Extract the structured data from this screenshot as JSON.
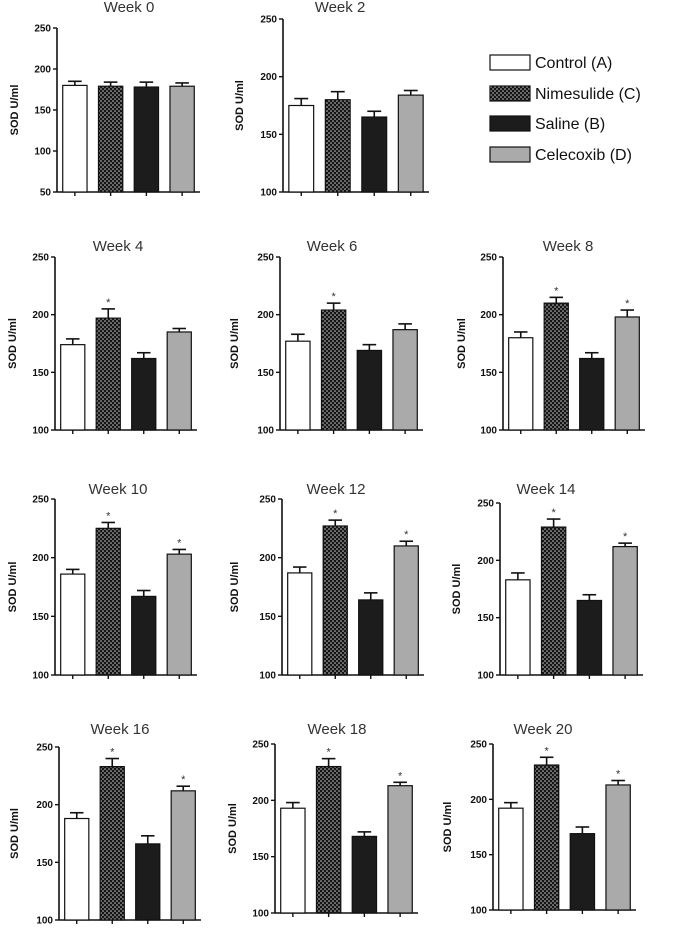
{
  "legend": {
    "items": [
      {
        "label": "Control (A)",
        "style": "control"
      },
      {
        "label": "Nimesulide (C)",
        "style": "nimesulide"
      },
      {
        "label": "Saline (B)",
        "style": "saline"
      },
      {
        "label": "Celecoxib (D)",
        "style": "celecoxib"
      }
    ]
  },
  "colors": {
    "control": "#ffffff",
    "nimesulide": "#1a1a1a",
    "saline": "#1c1c1c",
    "celecoxib": "#aaaaaa",
    "axis": "#111111"
  },
  "chart_data": [
    {
      "type": "bar",
      "title": "Week 0",
      "ylabel": "SOD U/ml",
      "ylim": [
        50,
        250
      ],
      "yticks": [
        50,
        100,
        150,
        200,
        250
      ],
      "series": [
        {
          "name": "Control (A)",
          "values": [
            180
          ]
        },
        {
          "name": "Nimesulide (C)",
          "values": [
            179
          ]
        },
        {
          "name": "Saline (B)",
          "values": [
            178
          ]
        },
        {
          "name": "Celecoxib (D)",
          "values": [
            179
          ]
        }
      ],
      "errors": [
        5,
        5,
        6,
        4
      ],
      "significant": [
        false,
        false,
        false,
        false
      ]
    },
    {
      "type": "bar",
      "title": "Week 2",
      "ylabel": "SOD U/ml",
      "ylim": [
        100,
        250
      ],
      "yticks": [
        100,
        150,
        200,
        250
      ],
      "series": [
        {
          "name": "Control (A)",
          "values": [
            175
          ]
        },
        {
          "name": "Nimesulide (C)",
          "values": [
            180
          ]
        },
        {
          "name": "Saline (B)",
          "values": [
            165
          ]
        },
        {
          "name": "Celecoxib (D)",
          "values": [
            184
          ]
        }
      ],
      "errors": [
        6,
        7,
        5,
        4
      ],
      "significant": [
        false,
        false,
        false,
        false
      ]
    },
    {
      "type": "bar",
      "title": "Week 4",
      "ylabel": "SOD U/ml",
      "ylim": [
        100,
        250
      ],
      "yticks": [
        100,
        150,
        200,
        250
      ],
      "series": [
        {
          "name": "Control (A)",
          "values": [
            174
          ]
        },
        {
          "name": "Nimesulide (C)",
          "values": [
            197
          ]
        },
        {
          "name": "Saline (B)",
          "values": [
            162
          ]
        },
        {
          "name": "Celecoxib (D)",
          "values": [
            185
          ]
        }
      ],
      "errors": [
        5,
        8,
        5,
        3
      ],
      "significant": [
        false,
        true,
        false,
        false
      ]
    },
    {
      "type": "bar",
      "title": "Week 6",
      "ylabel": "SOD U/ml",
      "ylim": [
        100,
        250
      ],
      "yticks": [
        100,
        150,
        200,
        250
      ],
      "series": [
        {
          "name": "Control (A)",
          "values": [
            177
          ]
        },
        {
          "name": "Nimesulide (C)",
          "values": [
            204
          ]
        },
        {
          "name": "Saline (B)",
          "values": [
            169
          ]
        },
        {
          "name": "Celecoxib (D)",
          "values": [
            187
          ]
        }
      ],
      "errors": [
        6,
        6,
        5,
        5
      ],
      "significant": [
        false,
        true,
        false,
        false
      ]
    },
    {
      "type": "bar",
      "title": "Week 8",
      "ylabel": "SOD U/ml",
      "ylim": [
        100,
        250
      ],
      "yticks": [
        100,
        150,
        200,
        250
      ],
      "series": [
        {
          "name": "Control (A)",
          "values": [
            180
          ]
        },
        {
          "name": "Nimesulide (C)",
          "values": [
            210
          ]
        },
        {
          "name": "Saline (B)",
          "values": [
            162
          ]
        },
        {
          "name": "Celecoxib (D)",
          "values": [
            198
          ]
        }
      ],
      "errors": [
        5,
        5,
        5,
        6
      ],
      "significant": [
        false,
        true,
        false,
        true
      ]
    },
    {
      "type": "bar",
      "title": "Week 10",
      "ylabel": "SOD U/ml",
      "ylim": [
        100,
        250
      ],
      "yticks": [
        100,
        150,
        200,
        250
      ],
      "series": [
        {
          "name": "Control (A)",
          "values": [
            186
          ]
        },
        {
          "name": "Nimesulide (C)",
          "values": [
            225
          ]
        },
        {
          "name": "Saline (B)",
          "values": [
            167
          ]
        },
        {
          "name": "Celecoxib (D)",
          "values": [
            203
          ]
        }
      ],
      "errors": [
        4,
        5,
        5,
        4
      ],
      "significant": [
        false,
        true,
        false,
        true
      ]
    },
    {
      "type": "bar",
      "title": "Week 12",
      "ylabel": "SOD U/ml",
      "ylim": [
        100,
        250
      ],
      "yticks": [
        100,
        150,
        200,
        250
      ],
      "series": [
        {
          "name": "Control (A)",
          "values": [
            187
          ]
        },
        {
          "name": "Nimesulide (C)",
          "values": [
            227
          ]
        },
        {
          "name": "Saline (B)",
          "values": [
            164
          ]
        },
        {
          "name": "Celecoxib (D)",
          "values": [
            210
          ]
        }
      ],
      "errors": [
        5,
        5,
        6,
        4
      ],
      "significant": [
        false,
        true,
        false,
        true
      ]
    },
    {
      "type": "bar",
      "title": "Week 14",
      "ylabel": "SOD U/ml",
      "ylim": [
        100,
        250
      ],
      "yticks": [
        100,
        150,
        200,
        250
      ],
      "series": [
        {
          "name": "Control (A)",
          "values": [
            183
          ]
        },
        {
          "name": "Nimesulide (C)",
          "values": [
            229
          ]
        },
        {
          "name": "Saline (B)",
          "values": [
            165
          ]
        },
        {
          "name": "Celecoxib (D)",
          "values": [
            212
          ]
        }
      ],
      "errors": [
        6,
        7,
        5,
        3
      ],
      "significant": [
        false,
        true,
        false,
        true
      ]
    },
    {
      "type": "bar",
      "title": "Week 16",
      "ylabel": "SOD U/ml",
      "ylim": [
        100,
        250
      ],
      "yticks": [
        100,
        150,
        200,
        250
      ],
      "series": [
        {
          "name": "Control (A)",
          "values": [
            188
          ]
        },
        {
          "name": "Nimesulide (C)",
          "values": [
            233
          ]
        },
        {
          "name": "Saline (B)",
          "values": [
            166
          ]
        },
        {
          "name": "Celecoxib (D)",
          "values": [
            212
          ]
        }
      ],
      "errors": [
        5,
        7,
        7,
        4
      ],
      "significant": [
        false,
        true,
        false,
        true
      ]
    },
    {
      "type": "bar",
      "title": "Week 18",
      "ylabel": "SOD U/ml",
      "ylim": [
        100,
        250
      ],
      "yticks": [
        100,
        150,
        200,
        250
      ],
      "series": [
        {
          "name": "Control (A)",
          "values": [
            193
          ]
        },
        {
          "name": "Nimesulide (C)",
          "values": [
            230
          ]
        },
        {
          "name": "Saline (B)",
          "values": [
            168
          ]
        },
        {
          "name": "Celecoxib (D)",
          "values": [
            213
          ]
        }
      ],
      "errors": [
        5,
        7,
        4,
        3
      ],
      "significant": [
        false,
        true,
        false,
        true
      ]
    },
    {
      "type": "bar",
      "title": "Week 20",
      "ylabel": "SOD U/ml",
      "ylim": [
        100,
        250
      ],
      "yticks": [
        100,
        150,
        200,
        250
      ],
      "series": [
        {
          "name": "Control (A)",
          "values": [
            192
          ]
        },
        {
          "name": "Nimesulide (C)",
          "values": [
            231
          ]
        },
        {
          "name": "Saline (B)",
          "values": [
            169
          ]
        },
        {
          "name": "Celecoxib (D)",
          "values": [
            213
          ]
        }
      ],
      "errors": [
        5,
        7,
        6,
        4
      ],
      "significant": [
        false,
        true,
        false,
        true
      ]
    }
  ]
}
